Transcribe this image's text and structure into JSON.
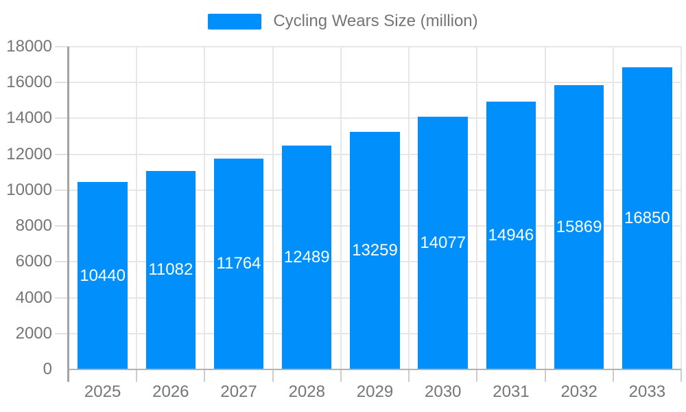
{
  "legend": {
    "label": "Cycling Wears Size (million)"
  },
  "chart_data": {
    "type": "bar",
    "title": "Cycling Wears Size (million)",
    "categories": [
      "2025",
      "2026",
      "2027",
      "2028",
      "2029",
      "2030",
      "2031",
      "2032",
      "2033"
    ],
    "values": [
      10440,
      11082,
      11764,
      12489,
      13259,
      14077,
      14946,
      15869,
      16850
    ],
    "xlabel": "",
    "ylabel": "",
    "ylim": [
      0,
      18000
    ],
    "ytick_step": 2000,
    "grid": true,
    "legend_position": "top",
    "colors": {
      "bar": "#008FFB",
      "bar_label": "#ffffff",
      "axis_text": "#757575",
      "grid_line": "#e6e6e6",
      "axis_line": "#a3a3a3"
    }
  }
}
